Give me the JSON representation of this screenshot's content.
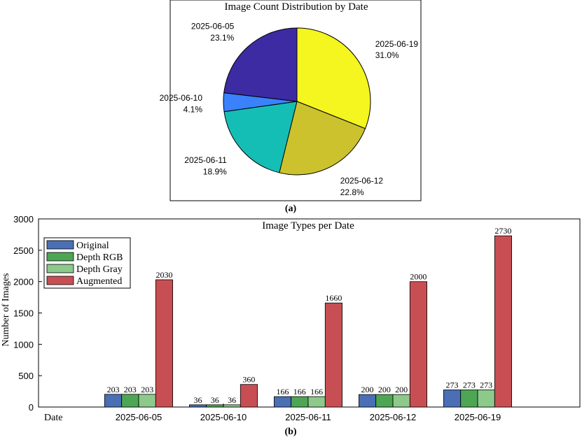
{
  "caption_a": "(a)",
  "caption_b": "(b)",
  "chart_data": [
    {
      "type": "pie",
      "title": "Image Count Distribution by Date",
      "categories": [
        "2025-06-19",
        "2025-06-12",
        "2025-06-11",
        "2025-06-10",
        "2025-06-05"
      ],
      "values": [
        31.0,
        22.8,
        18.9,
        4.1,
        23.1
      ],
      "labels": [
        "31.0%",
        "22.8%",
        "18.9%",
        "4.1%",
        "23.1%"
      ],
      "colors": [
        "#F5F51F",
        "#CBC22D",
        "#15BEB5",
        "#3A82FB",
        "#3C2BA2"
      ],
      "legend": "none"
    },
    {
      "type": "bar",
      "title": "Image Types per Date",
      "xlabel": "Date",
      "ylabel": "Number of Images",
      "categories": [
        "2025-06-05",
        "2025-06-10",
        "2025-06-11",
        "2025-06-12",
        "2025-06-19"
      ],
      "series": [
        {
          "name": "Original",
          "color": "#4A6FB5",
          "values": [
            203,
            36,
            166,
            200,
            273
          ]
        },
        {
          "name": "Depth RGB",
          "color": "#4DA653",
          "values": [
            203,
            36,
            166,
            200,
            273
          ]
        },
        {
          "name": "Depth Gray",
          "color": "#8DC98A",
          "values": [
            203,
            36,
            166,
            200,
            273
          ]
        },
        {
          "name": "Augmented",
          "color": "#C74F53",
          "values": [
            2030,
            360,
            1660,
            2000,
            2730
          ]
        }
      ],
      "ylim": [
        0,
        3000
      ],
      "yticks": [
        0,
        500,
        1000,
        1500,
        2000,
        2500,
        3000
      ],
      "grid": false,
      "legend": "top-left"
    }
  ]
}
